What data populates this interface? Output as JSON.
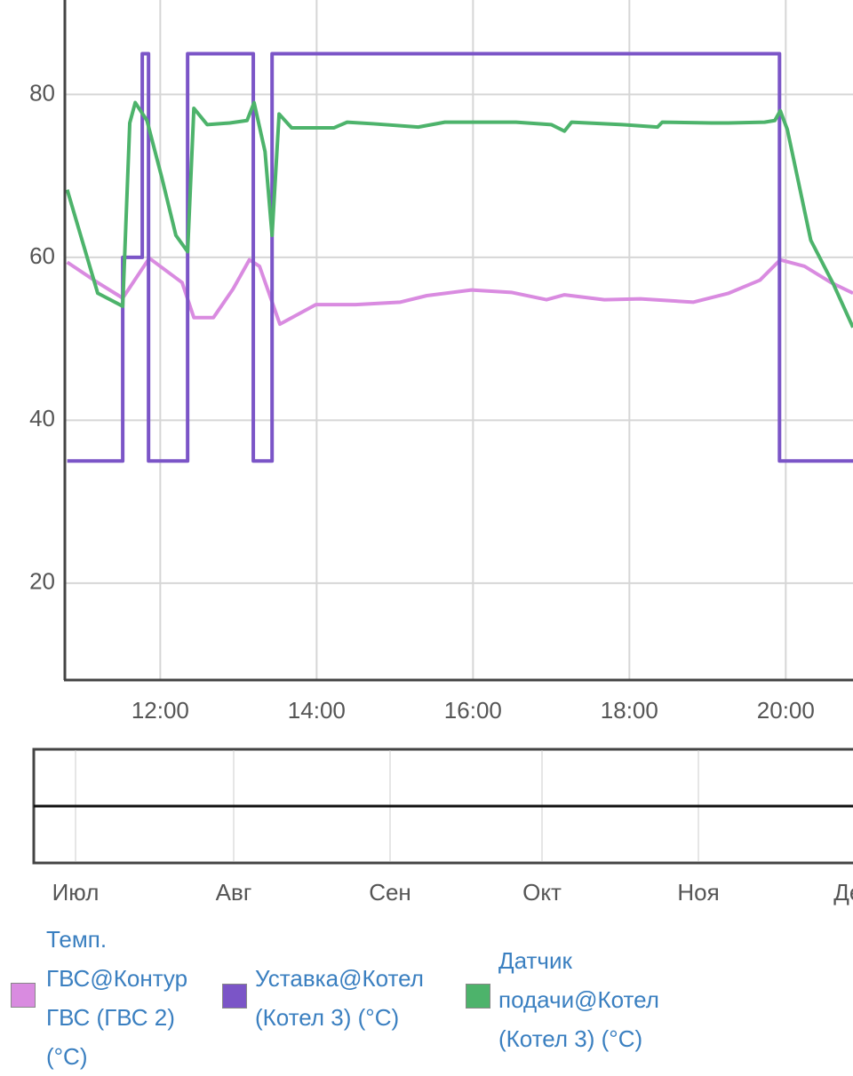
{
  "chart_data": {
    "type": "line",
    "xlim": [
      10.78,
      20.86
    ],
    "xticks": [
      {
        "value": 12,
        "label": "12:00"
      },
      {
        "value": 14,
        "label": "14:00"
      },
      {
        "value": 16,
        "label": "16:00"
      },
      {
        "value": 18,
        "label": "18:00"
      },
      {
        "value": 20,
        "label": "20:00"
      }
    ],
    "ylim": [
      8.1,
      91.6
    ],
    "yticks": [
      20,
      40,
      60,
      80
    ],
    "grid": true,
    "legend": "bottom",
    "series": [
      {
        "name": "Темп. ГВС@Контур ГВС (ГВС 2) (°C)",
        "color": "#d98be0",
        "x": [
          10.81,
          11.2,
          11.52,
          11.86,
          12.28,
          12.43,
          12.68,
          12.93,
          13.14,
          13.27,
          13.53,
          13.99,
          14.5,
          15.07,
          15.41,
          15.98,
          16.49,
          16.94,
          17.17,
          17.68,
          18.14,
          18.82,
          19.27,
          19.67,
          19.93,
          20.24,
          20.58,
          20.86
        ],
        "values": [
          59.4,
          56.9,
          55.0,
          59.9,
          56.9,
          52.6,
          52.6,
          56.1,
          59.7,
          58.9,
          51.8,
          54.2,
          54.2,
          54.5,
          55.3,
          56.0,
          55.7,
          54.8,
          55.4,
          54.8,
          54.9,
          54.5,
          55.6,
          57.2,
          59.7,
          58.9,
          56.9,
          55.6
        ]
      },
      {
        "name": "Уставка@Котел (Котел 3) (°C)",
        "color": "#7b55c7",
        "x": [
          10.81,
          11.52,
          11.52,
          11.77,
          11.77,
          11.85,
          11.85,
          12.35,
          12.35,
          13.19,
          13.19,
          13.43,
          13.43,
          19.92,
          19.92,
          20.86
        ],
        "values": [
          35,
          35,
          60,
          60,
          85,
          85,
          35,
          35,
          85,
          85,
          35,
          35,
          85,
          85,
          35,
          35
        ]
      },
      {
        "name": "Датчик подачи@Котел (Котел 3) (°C)",
        "color": "#4db36b",
        "x": [
          10.81,
          11.2,
          11.52,
          11.61,
          11.68,
          11.83,
          12.02,
          12.2,
          12.35,
          12.43,
          12.6,
          12.89,
          13.11,
          13.2,
          13.34,
          13.43,
          13.52,
          13.68,
          14.22,
          14.39,
          14.73,
          15.3,
          15.64,
          16.55,
          17.0,
          17.17,
          17.26,
          17.91,
          18.36,
          18.42,
          19.05,
          19.27,
          19.73,
          19.86,
          19.93,
          20.02,
          20.32,
          20.61,
          20.86
        ],
        "values": [
          68.3,
          55.6,
          54.0,
          76.5,
          79.0,
          76.8,
          69.8,
          62.7,
          60.7,
          78.3,
          76.3,
          76.5,
          76.8,
          79.0,
          73.0,
          62.7,
          77.6,
          75.9,
          75.9,
          76.6,
          76.4,
          76.0,
          76.6,
          76.6,
          76.3,
          75.5,
          76.6,
          76.3,
          76.0,
          76.6,
          76.5,
          76.5,
          76.6,
          76.8,
          78.0,
          75.7,
          62.1,
          56.7,
          51.4
        ]
      }
    ],
    "navigator": {
      "labels": [
        "Июл",
        "Авг",
        "Сен",
        "Окт",
        "Ноя",
        "Дек"
      ]
    }
  }
}
